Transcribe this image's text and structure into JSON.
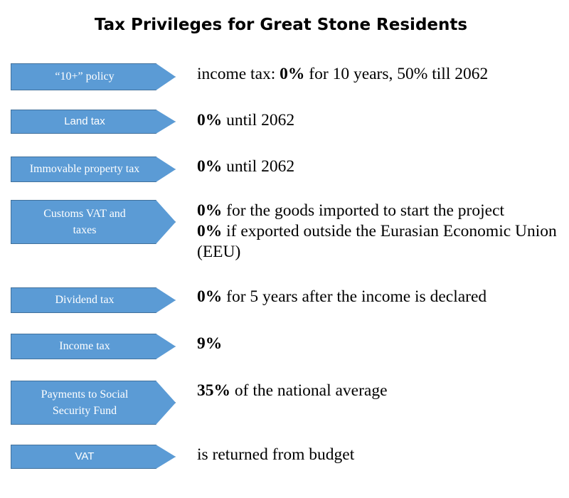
{
  "title": "Tax Privileges for Great Stone Residents",
  "accent_color": "#5b9bd5",
  "rows": [
    {
      "label_lines": [
        "“10+” policy"
      ],
      "description": [
        {
          "bold": "",
          "text": "income tax: "
        },
        {
          "bold": "0%",
          "text": " for 10 years, 50% till 2062"
        }
      ]
    },
    {
      "label_lines": [
        "Land tax"
      ],
      "description": [
        {
          "bold": "0%",
          "text": " until 2062"
        }
      ]
    },
    {
      "label_lines": [
        "Immovable property tax"
      ],
      "description": [
        {
          "bold": "0%",
          "text": " until 2062"
        }
      ]
    },
    {
      "label_lines": [
        "Customs VAT and",
        "taxes"
      ],
      "description": [
        {
          "bold": "0%",
          "text": " for the goods imported to start the project"
        },
        {
          "bold": "0%",
          "text": " if exported outside the Eurasian Economic Union (EEU)"
        }
      ]
    },
    {
      "label_lines": [
        "Dividend tax"
      ],
      "description": [
        {
          "bold": "0%",
          "text": " for 5 years after the income is declared"
        }
      ]
    },
    {
      "label_lines": [
        "Income tax"
      ],
      "description": [
        {
          "bold": "9%",
          "text": ""
        }
      ]
    },
    {
      "label_lines": [
        "Payments to Social",
        "Security Fund"
      ],
      "description": [
        {
          "bold": "35%",
          "text": " of the national average"
        }
      ]
    },
    {
      "label_lines": [
        "VAT"
      ],
      "description": [
        {
          "bold": "",
          "text": "is returned from budget"
        }
      ]
    }
  ]
}
